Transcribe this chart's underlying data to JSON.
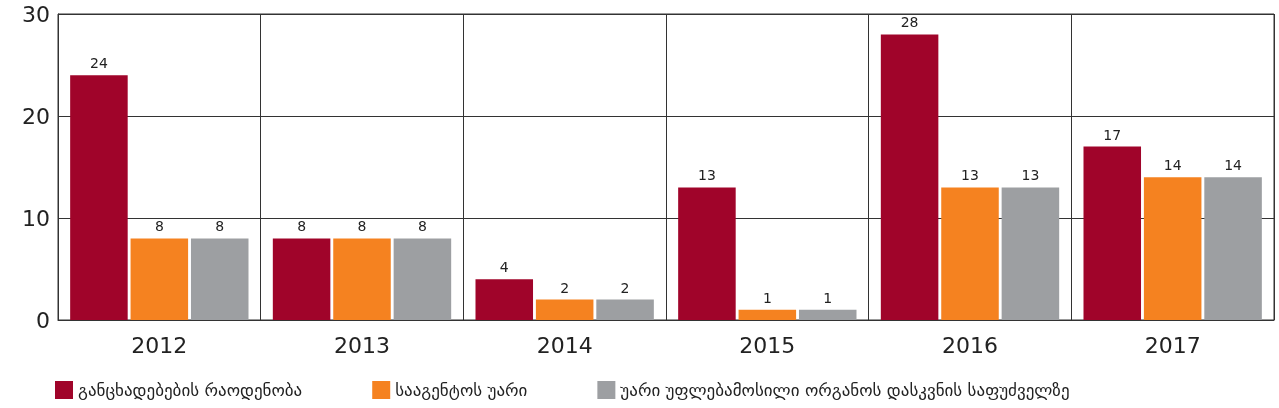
{
  "chart_data": {
    "type": "bar",
    "categories": [
      "2012",
      "2013",
      "2014",
      "2015",
      "2016",
      "2017"
    ],
    "series": [
      {
        "name": "განცხადებების რაოდენობა",
        "color": "#a0042a",
        "values": [
          24,
          8,
          4,
          13,
          28,
          17
        ]
      },
      {
        "name": "სააგენტოს უარი",
        "color": "#f58220",
        "values": [
          8,
          8,
          2,
          1,
          13,
          14
        ]
      },
      {
        "name": "უარი უფლებამოსილი ორგანოს დასკვნის საფუძველზე",
        "color": "#9d9fa2",
        "values": [
          8,
          8,
          2,
          1,
          13,
          14
        ]
      }
    ],
    "ylim": [
      0,
      30
    ],
    "yticks": [
      0,
      10,
      20,
      30
    ],
    "grid": true,
    "legend": "bottom left",
    "data_labels": true
  }
}
